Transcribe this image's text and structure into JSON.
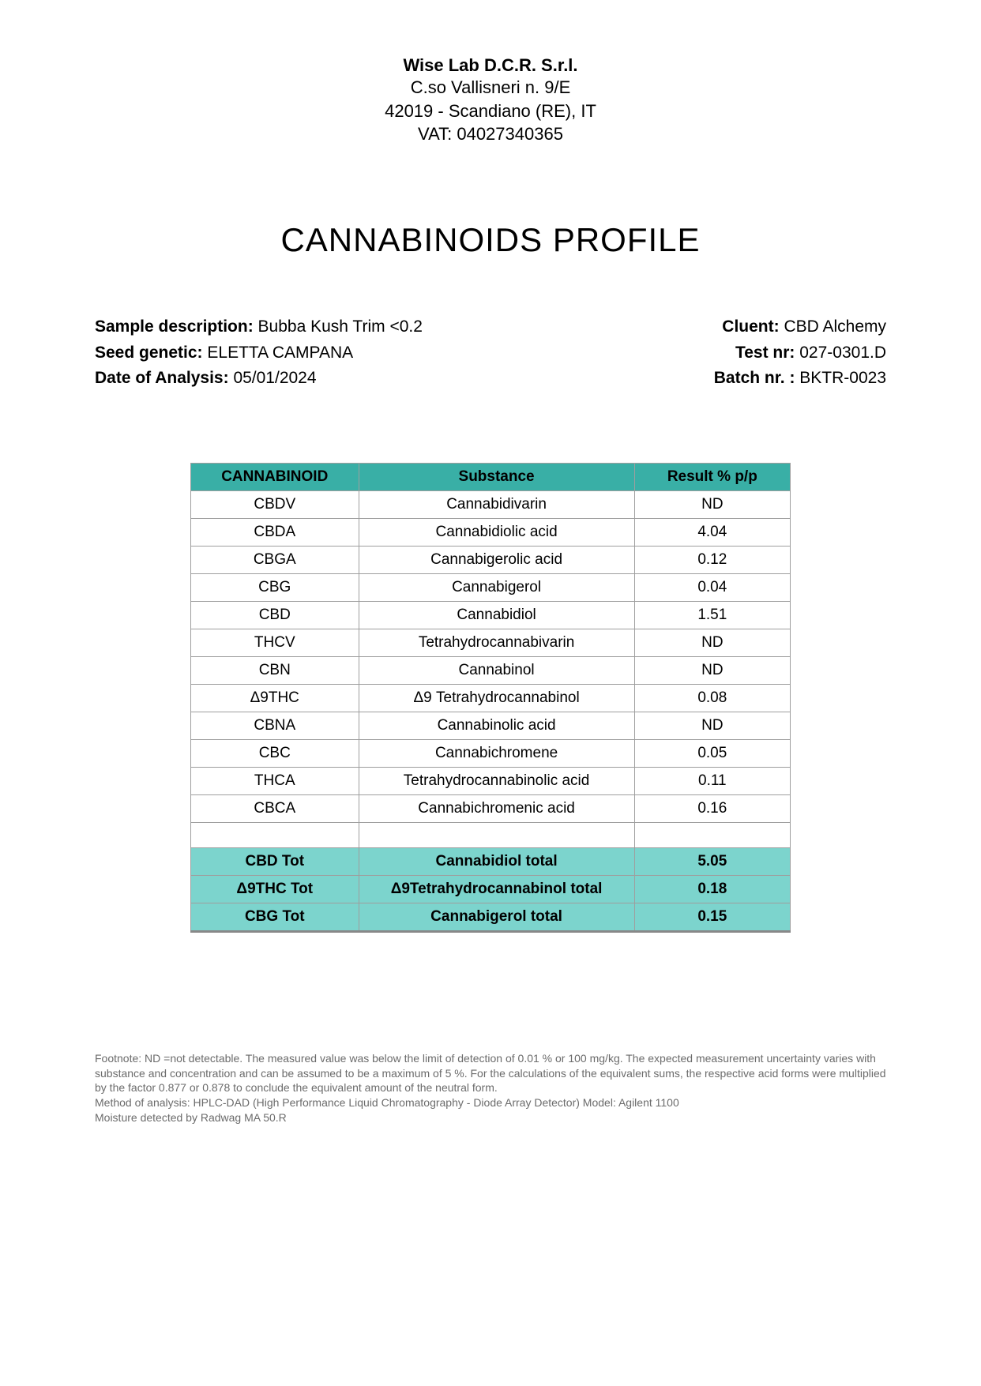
{
  "header": {
    "company": "Wise Lab D.C.R. S.r.l.",
    "address1": "C.so Vallisneri n. 9/E",
    "address2": "42019 - Scandiano (RE), IT",
    "vat": "VAT: 04027340365"
  },
  "title": "CANNABINOIDS PROFILE",
  "meta_left": {
    "sample_label": "Sample description: ",
    "sample_value": "Bubba Kush Trim <0.2",
    "seed_label": "Seed genetic: ",
    "seed_value": "ELETTA CAMPANA",
    "date_label": "Date of Analysis: ",
    "date_value": "05/01/2024"
  },
  "meta_right": {
    "client_label": "Cluent: ",
    "client_value": "CBD Alchemy",
    "test_label": "Test nr: ",
    "test_value": "027-0301.D",
    "batch_label": "Batch nr. : ",
    "batch_value": "BKTR-0023"
  },
  "table": {
    "headers": {
      "c1": "CANNABINOID",
      "c2": "Substance",
      "c3": "Result % p/p"
    },
    "header_bg": "#39afa6",
    "total_bg": "#7cd4cd",
    "border_color": "#9e9e9e",
    "rows": [
      {
        "c1": "CBDV",
        "c2": "Cannabidivarin",
        "c3": "ND"
      },
      {
        "c1": "CBDA",
        "c2": "Cannabidiolic acid",
        "c3": "4.04"
      },
      {
        "c1": "CBGA",
        "c2": "Cannabigerolic acid",
        "c3": "0.12"
      },
      {
        "c1": "CBG",
        "c2": "Cannabigerol",
        "c3": "0.04"
      },
      {
        "c1": "CBD",
        "c2": "Cannabidiol",
        "c3": "1.51"
      },
      {
        "c1": "THCV",
        "c2": "Tetrahydrocannabivarin",
        "c3": "ND"
      },
      {
        "c1": "CBN",
        "c2": "Cannabinol",
        "c3": "ND"
      },
      {
        "c1": "Δ9THC",
        "c2": "Δ9 Tetrahydrocannabinol",
        "c3": "0.08"
      },
      {
        "c1": "CBNA",
        "c2": "Cannabinolic acid",
        "c3": "ND"
      },
      {
        "c1": "CBC",
        "c2": "Cannabichromene",
        "c3": "0.05"
      },
      {
        "c1": "THCA",
        "c2": "Tetrahydrocannabinolic acid",
        "c3": "0.11"
      },
      {
        "c1": "CBCA",
        "c2": "Cannabichromenic acid",
        "c3": "0.16"
      }
    ],
    "totals": [
      {
        "c1": "CBD Tot",
        "c2": "Cannabidiol  total",
        "c3": "5.05"
      },
      {
        "c1": "Δ9THC Tot",
        "c2": "Δ9Tetrahydrocannabinol total",
        "c3": "0.18"
      },
      {
        "c1": "CBG Tot",
        "c2": "Cannabigerol total",
        "c3": "0.15"
      }
    ]
  },
  "footnotes": {
    "l1": "Footnote:  ND =not detectable. The measured value was below the limit of detection of 0.01 % or 100 mg/kg. The expected measurement uncertainty varies with substance and concentration and can be assumed to be a maximum of 5 %. For the calculations of the equivalent sums, the respective acid forms were multiplied by the factor 0.877 or 0.878 to conclude the equivalent amount of the neutral form.",
    "l2": "Method of analysis: HPLC-DAD (High Performance Liquid Chromatography - Diode Array Detector) Model: Agilent 1100",
    "l3": "Moisture detected by Radwag MA 50.R"
  }
}
